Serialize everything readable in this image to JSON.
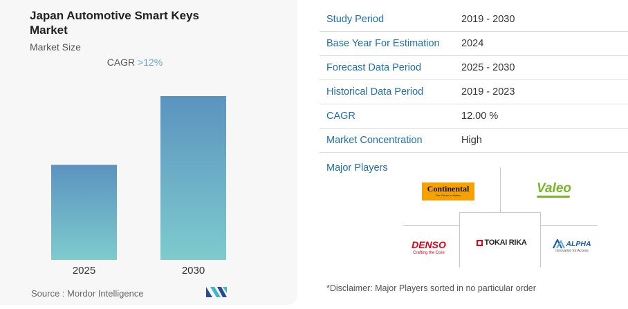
{
  "chart_data": {
    "type": "bar",
    "title": "Japan Automotive Smart Keys Market",
    "subtitle": "Market Size",
    "categories": [
      "2025",
      "2030"
    ],
    "values": [
      0.58,
      1.0
    ],
    "value_note": "relative",
    "cagr_label": "CAGR",
    "cagr_value": ">12%",
    "colors": {
      "bar_top": "#5b93bf",
      "bar_bottom": "#7ecbcd",
      "cagr": "#6aa5c8"
    }
  },
  "source": "Source :  Mordor Intelligence",
  "info_table": [
    {
      "label": "Study Period",
      "value": "2019 - 2030"
    },
    {
      "label": "Base Year For Estimation",
      "value": "2024"
    },
    {
      "label": "Forecast Data Period",
      "value": "2025 - 2030"
    },
    {
      "label": "Historical Data Period",
      "value": "2019 - 2023"
    },
    {
      "label": "CAGR",
      "value": "12.00 %"
    },
    {
      "label": "Market Concentration",
      "value": "High"
    }
  ],
  "major_players_label": "Major Players",
  "players": {
    "continental": {
      "name": "Continental",
      "tagline": "The Future in Motion"
    },
    "valeo": {
      "name": "Valeo"
    },
    "denso": {
      "name": "DENSO",
      "tagline": "Crafting the Core"
    },
    "tokai_rika": {
      "name": "TOKAI RIKA"
    },
    "alpha": {
      "name": "ALPHA",
      "tagline": "Innovation for Access"
    }
  },
  "disclaimer": "*Disclaimer: Major Players sorted in no particular order"
}
